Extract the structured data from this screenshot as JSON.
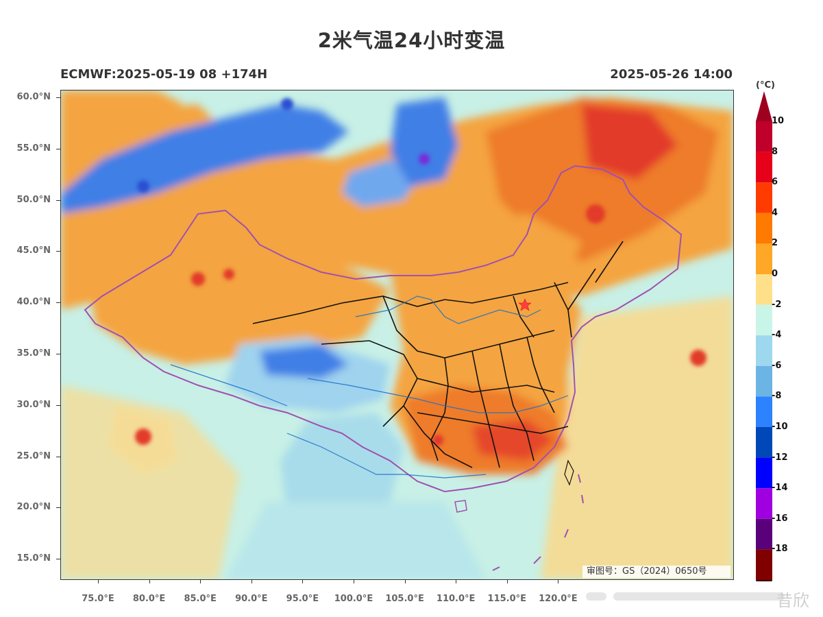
{
  "title": "2米气温24小时变温",
  "model_run": "ECMWF:2025-05-19 08 +174H",
  "valid_time": "2025-05-26 14:00",
  "lat_labels": [
    "60.0°N",
    "55.0°N",
    "50.0°N",
    "45.0°N",
    "40.0°N",
    "35.0°N",
    "30.0°N",
    "25.0°N",
    "20.0°N",
    "15.0°N"
  ],
  "lon_labels": [
    "75.0°E",
    "80.0°E",
    "85.0°E",
    "90.0°E",
    "95.0°E",
    "100.0°E",
    "105.0°E",
    "110.0°E",
    "115.0°E",
    "120.0°E"
  ],
  "colorbar": {
    "unit": "(°C)",
    "levels": [
      "10",
      "8",
      "6",
      "4",
      "2",
      "0",
      "-2",
      "-4",
      "-6",
      "-8",
      "-10",
      "-12",
      "-14",
      "-16",
      "-18"
    ],
    "colors": [
      "#c0002a",
      "#e6001a",
      "#ff3b00",
      "#ff7a00",
      "#ffa726",
      "#ffe08a",
      "#c9f5e8",
      "#9ed8ee",
      "#6cb4e4",
      "#2c82ff",
      "#0047b8",
      "#0000ff",
      "#a000e0",
      "#5a007a",
      "#800000"
    ]
  },
  "approval_number": "审图号：GS（2024）0650号",
  "watermark_text": "昔欣",
  "capital_marker": "red-star",
  "colors": {
    "warm_light": "#f4a440",
    "warm_mid": "#ee7b2a",
    "warm_hot": "#e23a2a",
    "neutral": "#f5dc96",
    "cool_light": "#c8f0e6",
    "cool_mid": "#9fd3ee",
    "cool_blue": "#3f7fe6",
    "cool_deep": "#2a4fd0",
    "border_country": "#a050b0",
    "border_province": "#111111",
    "river": "#1e70c8"
  }
}
